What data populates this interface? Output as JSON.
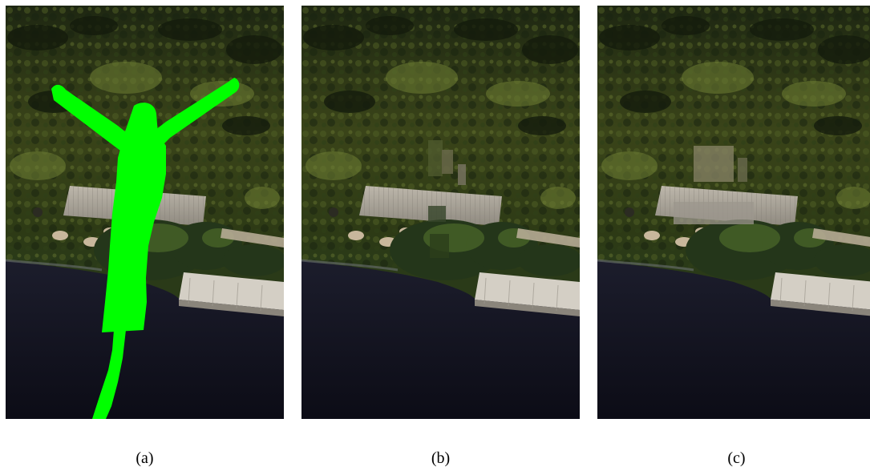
{
  "figure": {
    "panels": [
      {
        "id": "a",
        "caption": "(a)",
        "content": "photo-with-green-mask"
      },
      {
        "id": "b",
        "caption": "(b)",
        "content": "inpainted-result-1"
      },
      {
        "id": "c",
        "caption": "(c)",
        "content": "inpainted-result-2"
      }
    ],
    "colors": {
      "mask": "#00ff00",
      "vegetation_dark": "#1f2a12",
      "vegetation_mid": "#3d4a1f",
      "vegetation_light": "#5a6a2e",
      "water": "#141624",
      "roof": "#a8a39a",
      "dock": "#cfc9bf"
    }
  }
}
